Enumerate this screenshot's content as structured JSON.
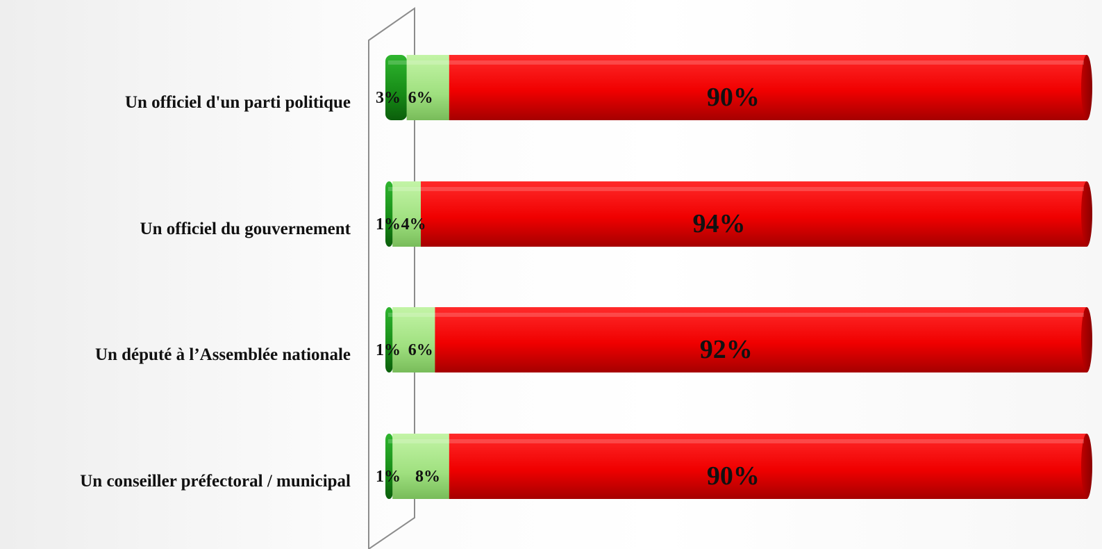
{
  "chart_data": {
    "type": "bar",
    "orientation": "horizontal",
    "stacked": true,
    "categories": [
      "Un officiel d'un parti politique",
      "Un officiel du gouvernement",
      "Un député à l’Assemblée nationale",
      "Un conseiller préfectoral / municipal"
    ],
    "series": [
      {
        "values": [
          3,
          1,
          1,
          1
        ],
        "labels": [
          "3%",
          "1%",
          "1%",
          "1%"
        ],
        "color": "#1a9a1a"
      },
      {
        "values": [
          6,
          4,
          6,
          8
        ],
        "labels": [
          "6%",
          "4%",
          "6%",
          "8%"
        ],
        "color": "#a6e58a"
      },
      {
        "values": [
          90,
          94,
          92,
          90
        ],
        "labels": [
          "90%",
          "94%",
          "92%",
          "90%"
        ],
        "color": "#f20000"
      }
    ],
    "xlim": [
      0,
      100
    ],
    "grid": false,
    "legend": "none"
  }
}
